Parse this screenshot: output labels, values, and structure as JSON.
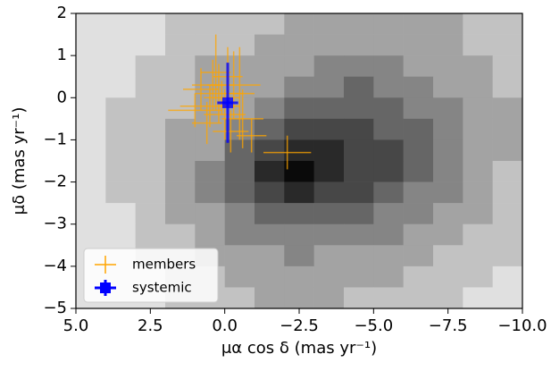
{
  "chart_data": {
    "type": "scatter",
    "xlabel": "μα cos δ (mas yr⁻¹)",
    "ylabel": "μδ (mas yr⁻¹)",
    "xlim": [
      5,
      -10
    ],
    "ylim": [
      -5,
      2
    ],
    "xticks": [
      {
        "value": 5,
        "label": "5.0"
      },
      {
        "value": 2.5,
        "label": "2.5"
      },
      {
        "value": 0,
        "label": "0.0"
      },
      {
        "value": -2.5,
        "label": "−2.5"
      },
      {
        "value": -5,
        "label": "−5.0"
      },
      {
        "value": -7.5,
        "label": "−7.5"
      },
      {
        "value": -10,
        "label": "−10.0"
      }
    ],
    "yticks": [
      {
        "value": -5,
        "label": "−5"
      },
      {
        "value": -4,
        "label": "−4"
      },
      {
        "value": -3,
        "label": "−3"
      },
      {
        "value": -2,
        "label": "−2"
      },
      {
        "value": -1,
        "label": "−1"
      },
      0,
      1,
      2
    ],
    "histogram": {
      "xbins": [
        5,
        4,
        3,
        2,
        1,
        0,
        -1,
        -2,
        -3,
        -4,
        -5,
        -6,
        -7,
        -8,
        -9,
        -10
      ],
      "ybins": [
        2,
        1.5,
        1,
        0.5,
        0,
        -0.5,
        -1,
        -1.5,
        -2,
        -2.5,
        -3,
        -3.5,
        -4,
        -4.5,
        -5
      ],
      "values": [
        [
          1,
          1,
          1,
          2,
          2,
          2,
          2,
          3,
          3,
          3,
          3,
          3,
          3,
          2,
          2
        ],
        [
          1,
          1,
          1,
          2,
          2,
          2,
          3,
          3,
          3,
          3,
          3,
          3,
          3,
          2,
          2
        ],
        [
          1,
          1,
          2,
          2,
          3,
          3,
          3,
          3,
          4,
          4,
          4,
          3,
          3,
          3,
          2
        ],
        [
          1,
          1,
          2,
          2,
          3,
          3,
          3,
          4,
          4,
          5,
          4,
          4,
          3,
          3,
          2
        ],
        [
          1,
          2,
          2,
          2,
          3,
          3,
          4,
          5,
          5,
          5,
          5,
          4,
          4,
          3,
          3
        ],
        [
          1,
          2,
          2,
          3,
          3,
          4,
          5,
          6,
          6,
          6,
          5,
          5,
          4,
          3,
          3
        ],
        [
          1,
          2,
          2,
          3,
          3,
          5,
          6,
          7,
          7,
          6,
          6,
          5,
          4,
          3,
          3
        ],
        [
          1,
          2,
          2,
          3,
          4,
          5,
          7,
          8,
          7,
          6,
          6,
          5,
          4,
          3,
          2
        ],
        [
          1,
          2,
          2,
          3,
          4,
          5,
          6,
          7,
          6,
          6,
          5,
          4,
          4,
          3,
          2
        ],
        [
          1,
          1,
          2,
          3,
          3,
          4,
          5,
          5,
          5,
          5,
          4,
          4,
          3,
          3,
          2
        ],
        [
          1,
          1,
          2,
          2,
          3,
          4,
          4,
          4,
          4,
          4,
          4,
          3,
          3,
          2,
          2
        ],
        [
          1,
          1,
          2,
          2,
          3,
          3,
          3,
          4,
          3,
          3,
          3,
          3,
          2,
          2,
          2
        ],
        [
          1,
          1,
          1,
          2,
          2,
          3,
          3,
          3,
          3,
          3,
          3,
          2,
          2,
          2,
          1
        ],
        [
          1,
          1,
          1,
          2,
          2,
          2,
          3,
          3,
          3,
          2,
          2,
          2,
          2,
          1,
          1
        ]
      ]
    },
    "series": [
      {
        "name": "members",
        "color": "#ffa500",
        "marker": "cross",
        "x": [
          0.2,
          0.5,
          -0.3,
          0.0,
          0.8,
          -0.6,
          0.3,
          -0.2,
          1.0,
          0.1,
          -0.5,
          0.6,
          -0.9,
          0.4,
          -0.1,
          -2.1
        ],
        "y": [
          0.1,
          -0.2,
          0.3,
          -0.4,
          0.2,
          -0.5,
          0.6,
          -0.8,
          -0.3,
          0.0,
          0.1,
          -0.6,
          -0.9,
          0.3,
          0.5,
          -1.3
        ],
        "xerr": [
          0.8,
          1.0,
          0.9,
          0.7,
          0.6,
          0.7,
          0.5,
          0.6,
          0.9,
          0.6,
          0.5,
          0.5,
          0.5,
          0.7,
          0.5,
          0.8
        ],
        "yerr": [
          0.7,
          0.5,
          0.8,
          0.6,
          0.5,
          0.7,
          0.9,
          0.5,
          0.4,
          0.4,
          1.1,
          0.5,
          0.4,
          0.6,
          0.7,
          0.4
        ]
      },
      {
        "name": "systemic",
        "color": "#0000ff",
        "marker": "square",
        "x": [
          -0.1
        ],
        "y": [
          -0.12
        ],
        "xerr": [
          0.35
        ],
        "yerr": [
          0.95
        ]
      }
    ],
    "legend": "lower left"
  }
}
